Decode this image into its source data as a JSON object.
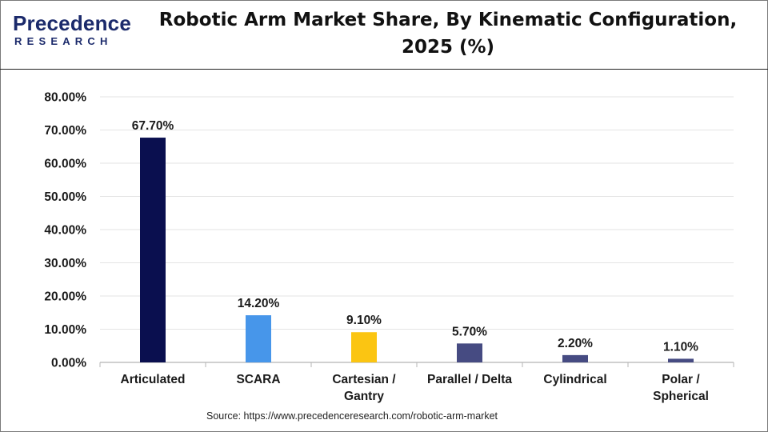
{
  "logo": {
    "word": "Precedence",
    "sub": "RESEARCH"
  },
  "title_line1": "Robotic Arm Market Share, By Kinematic Configuration,",
  "title_line2": "2025 (%)",
  "source": "Source: https://www.precedenceresearch.com/robotic-arm-market",
  "chart_data": {
    "type": "bar",
    "title": "Robotic Arm Market Share, By Kinematic Configuration, 2025 (%)",
    "categories": [
      [
        "Articulated"
      ],
      [
        "SCARA"
      ],
      [
        "Cartesian /",
        "Gantry"
      ],
      [
        "Parallel / Delta"
      ],
      [
        "Cylindrical"
      ],
      [
        "Polar /",
        "Spherical"
      ]
    ],
    "values": [
      67.7,
      14.2,
      9.1,
      5.7,
      2.2,
      1.1
    ],
    "data_labels": [
      "67.70%",
      "14.20%",
      "9.10%",
      "5.70%",
      "2.20%",
      "1.10%"
    ],
    "colors": [
      "#0a0f4f",
      "#4796ea",
      "#fbc512",
      "#464b82",
      "#464b82",
      "#464b82"
    ],
    "ylim": [
      0,
      80
    ],
    "yticks": [
      0,
      10,
      20,
      30,
      40,
      50,
      60,
      70,
      80
    ],
    "ytick_labels": [
      "0.00%",
      "10.00%",
      "20.00%",
      "30.00%",
      "40.00%",
      "50.00%",
      "60.00%",
      "70.00%",
      "80.00%"
    ],
    "grid": true,
    "xlabel": "",
    "ylabel": ""
  }
}
